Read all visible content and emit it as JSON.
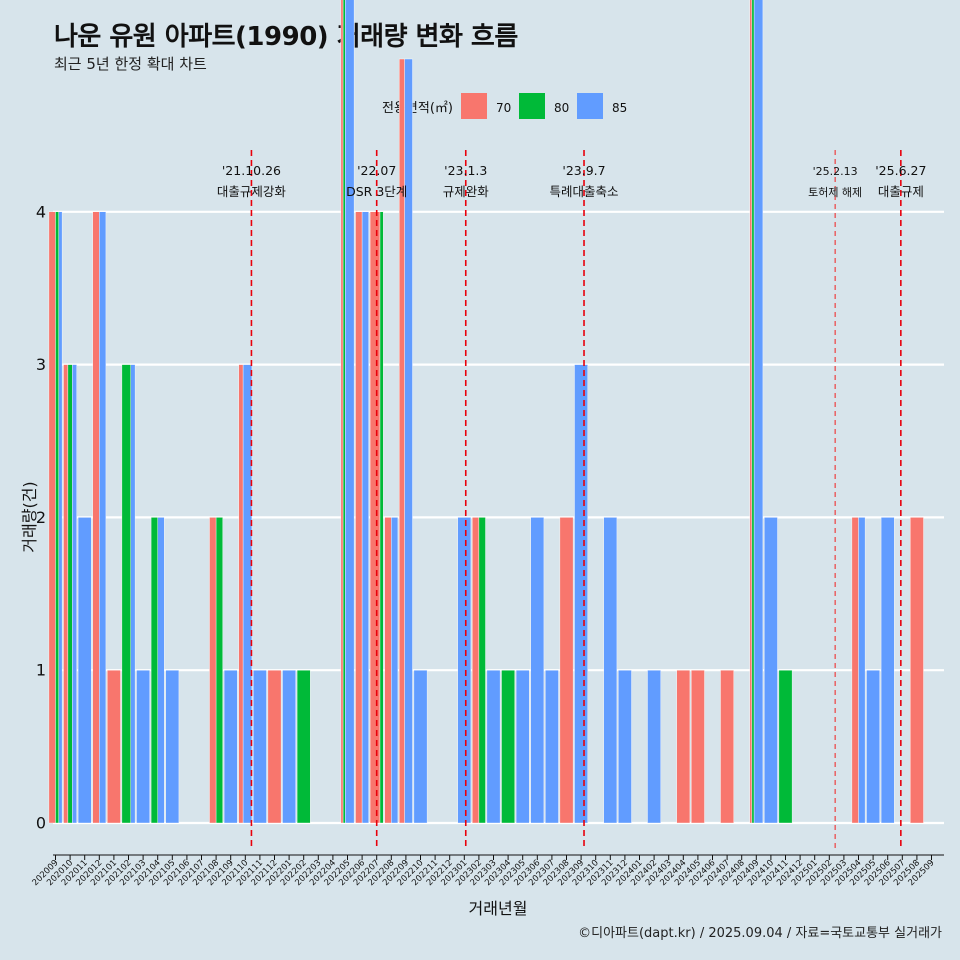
{
  "chart_data": {
    "type": "bar",
    "title": "나운 유원 아파트(1990) 거래량 변화 흐름",
    "subtitle": "최근 5년 한정 확대 차트",
    "xlabel": "거래년월",
    "ylabel": "거래량(건)",
    "ylim": [
      0,
      4
    ],
    "yticks": [
      "0",
      "1",
      "2",
      "3",
      "4"
    ],
    "caption": "©디아파트(dapt.kr) / 2025.09.04 / 자료=국토교통부 실거래가",
    "legend": {
      "title": "전용면적(㎡)",
      "position": "top"
    },
    "categories": [
      "202009",
      "202010",
      "202011",
      "202012",
      "202101",
      "202102",
      "202103",
      "202104",
      "202105",
      "202106",
      "202107",
      "202108",
      "202109",
      "202110",
      "202111",
      "202112",
      "202201",
      "202202",
      "202203",
      "202204",
      "202205",
      "202206",
      "202207",
      "202208",
      "202209",
      "202210",
      "202211",
      "202212",
      "202301",
      "202302",
      "202303",
      "202304",
      "202305",
      "202306",
      "202307",
      "202308",
      "202309",
      "202310",
      "202311",
      "202312",
      "202401",
      "202402",
      "202403",
      "202404",
      "202405",
      "202406",
      "202407",
      "202408",
      "202409",
      "202410",
      "202411",
      "202412",
      "202501",
      "202502",
      "202503",
      "202504",
      "202505",
      "202506",
      "202507",
      "202508",
      "202509"
    ],
    "series": [
      {
        "name": "70",
        "color": "#f8766d",
        "values": [
          2,
          1,
          0,
          2,
          1,
          0,
          0,
          0,
          0,
          0,
          0,
          1,
          0,
          1,
          0,
          1,
          0,
          0,
          0,
          0,
          1,
          2,
          3,
          1,
          2,
          0,
          0,
          0,
          0,
          1,
          0,
          0,
          0,
          0,
          0,
          2,
          0,
          0,
          0,
          0,
          0,
          0,
          0,
          1,
          1,
          0,
          1,
          0,
          1,
          0,
          0,
          0,
          0,
          0,
          0,
          1,
          0,
          0,
          0,
          2,
          0
        ]
      },
      {
        "name": "80",
        "color": "#00ba38",
        "values": [
          1,
          1,
          0,
          0,
          0,
          2,
          0,
          1,
          0,
          0,
          0,
          1,
          0,
          0,
          0,
          0,
          0,
          1,
          0,
          0,
          1,
          0,
          1,
          0,
          0,
          0,
          0,
          0,
          0,
          1,
          0,
          1,
          0,
          0,
          0,
          0,
          0,
          0,
          0,
          0,
          0,
          0,
          0,
          0,
          0,
          0,
          0,
          0,
          1,
          0,
          1,
          0,
          0,
          0,
          0,
          0,
          0,
          0,
          0,
          0,
          0
        ]
      },
      {
        "name": "85",
        "color": "#619cff",
        "values": [
          1,
          1,
          2,
          2,
          0,
          1,
          1,
          1,
          1,
          0,
          0,
          0,
          1,
          2,
          1,
          0,
          1,
          0,
          0,
          0,
          4,
          2,
          0,
          1,
          3,
          1,
          0,
          0,
          2,
          0,
          1,
          0,
          1,
          2,
          1,
          0,
          3,
          0,
          2,
          1,
          0,
          1,
          0,
          0,
          0,
          0,
          0,
          0,
          4,
          2,
          0,
          0,
          0,
          0,
          0,
          1,
          1,
          2,
          0,
          0,
          0
        ]
      }
    ],
    "annotations": [
      {
        "date": "'21.10.26",
        "label": "대출규제강화",
        "position_x": 13.42,
        "emphasis": "strong"
      },
      {
        "date": "'22.07",
        "label": "DSR 3단계",
        "position_x": 22.0,
        "emphasis": "strong"
      },
      {
        "date": "'23.1.3",
        "label": "규제완화",
        "position_x": 28.1,
        "emphasis": "strong"
      },
      {
        "date": "'23.9.7",
        "label": "특례대출축소",
        "position_x": 36.2,
        "emphasis": "strong"
      },
      {
        "date": "'25.2.13",
        "label": "토허제 해제",
        "position_x": 53.4,
        "emphasis": "light"
      },
      {
        "date": "'25.6.27",
        "label": "대출규제",
        "position_x": 57.9,
        "emphasis": "strong"
      }
    ]
  }
}
